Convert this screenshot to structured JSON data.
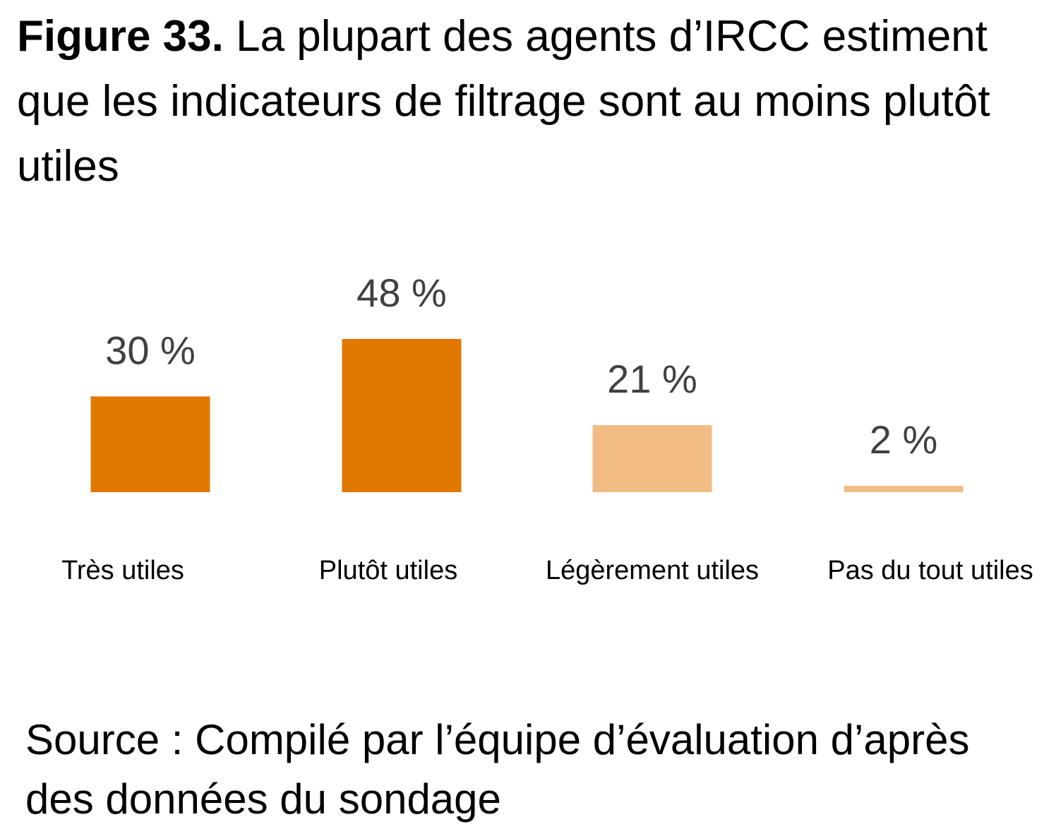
{
  "figure": {
    "number_label": "Figure 33.",
    "title": "La plupart des agents d’IRCC estiment que les indicateurs de filtrage sont au moins plutôt utiles",
    "source": "Source : Compilé par l’équipe d’évaluation d’après des données du sondage"
  },
  "chart_data": {
    "type": "bar",
    "categories": [
      "Très utiles",
      "Plutôt utiles",
      "Légèrement utiles",
      "Pas du tout utiles"
    ],
    "values": [
      30,
      48,
      21,
      2
    ],
    "value_labels": [
      "30 %",
      "48 %",
      "21 %",
      "2 %"
    ],
    "colors": [
      "#E07800",
      "#E07800",
      "#F0BC84",
      "#F0BC84"
    ],
    "unit": "%",
    "ylim": [
      0,
      48
    ],
    "grid": false,
    "axes_visible": false,
    "legend": "none"
  }
}
